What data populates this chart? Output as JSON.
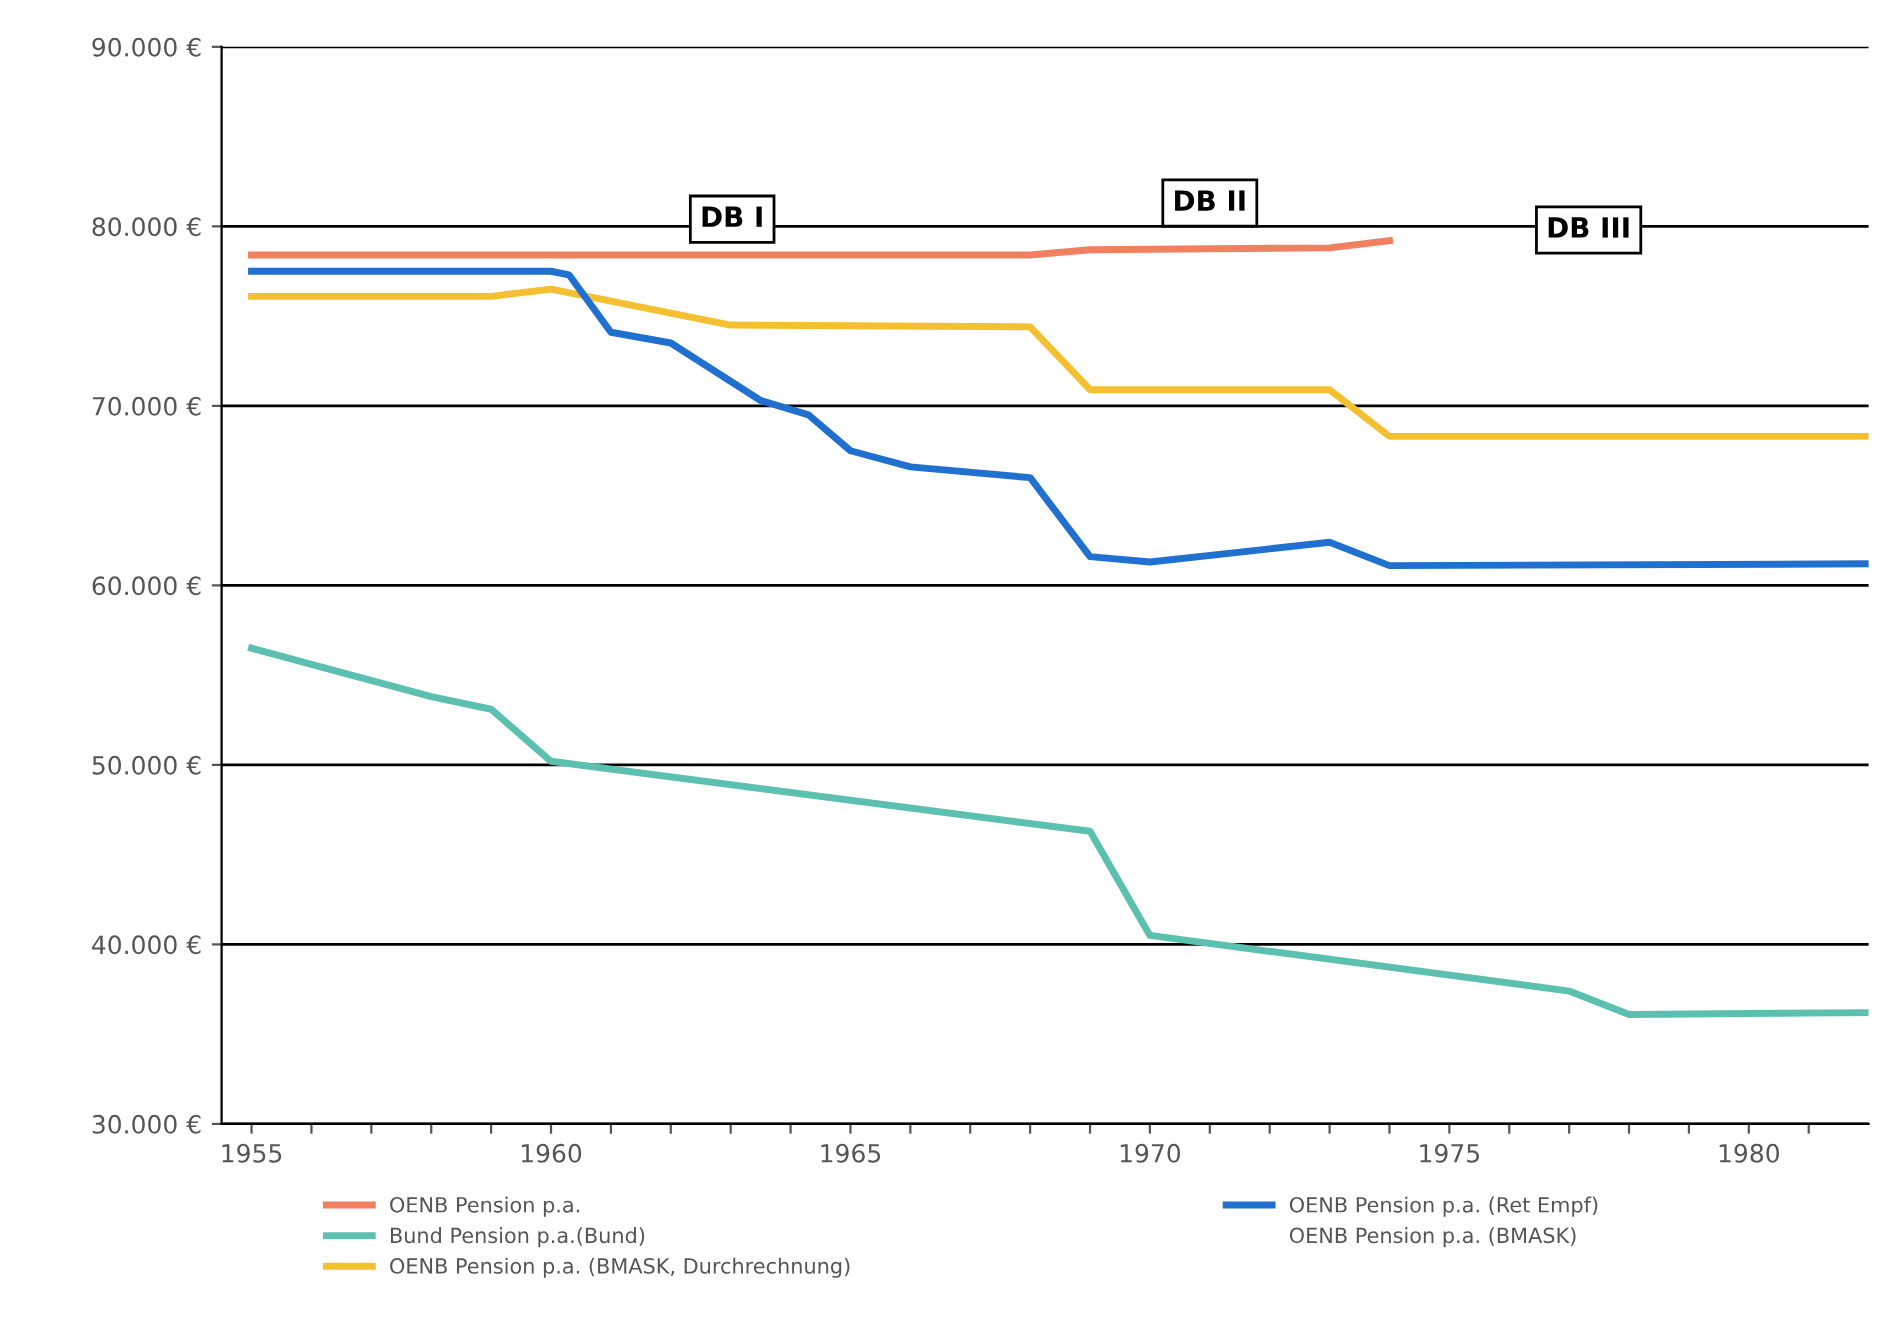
{
  "chart_data": {
    "type": "line",
    "ylim": [
      30000,
      90000
    ],
    "yticks": [
      {
        "value": 30000,
        "label": "30.000 €"
      },
      {
        "value": 40000,
        "label": "40.000 €"
      },
      {
        "value": 50000,
        "label": "50.000 €"
      },
      {
        "value": 60000,
        "label": "60.000 €"
      },
      {
        "value": 70000,
        "label": "70.000 €"
      },
      {
        "value": 80000,
        "label": "80.000 €"
      },
      {
        "value": 90000,
        "label": "90.000 €"
      }
    ],
    "xlim": [
      1954.5,
      1982
    ],
    "xticks": [
      1955,
      {
        "value": 1956,
        "label": null
      },
      {
        "value": 1957,
        "label": null
      },
      {
        "value": 1958,
        "label": null
      },
      {
        "value": 1959,
        "label": null
      },
      1960,
      {
        "value": 1961,
        "label": null
      },
      {
        "value": 1962,
        "label": null
      },
      {
        "value": 1963,
        "label": null
      },
      {
        "value": 1964,
        "label": null
      },
      1965,
      {
        "value": 1966,
        "label": null
      },
      {
        "value": 1967,
        "label": null
      },
      {
        "value": 1968,
        "label": null
      },
      {
        "value": 1969,
        "label": null
      },
      1970,
      {
        "value": 1971,
        "label": null
      },
      {
        "value": 1972,
        "label": null
      },
      {
        "value": 1973,
        "label": null
      },
      {
        "value": 1974,
        "label": null
      },
      1975,
      {
        "value": 1976,
        "label": null
      },
      {
        "value": 1977,
        "label": null
      },
      {
        "value": 1978,
        "label": null
      },
      {
        "value": 1979,
        "label": null
      },
      1980,
      {
        "value": 1981,
        "label": null
      }
    ],
    "grid": "y",
    "legend": "bottom",
    "marker": "none",
    "annotations": [
      "DB I",
      "DB II",
      "DB III"
    ],
    "series": [
      {
        "name": "OENB Pension p.a.",
        "color": "#f08060",
        "x": [
          1955,
          1968,
          1969,
          1973,
          1974
        ],
        "values": [
          78400,
          78400,
          78700,
          78800,
          79200
        ]
      },
      {
        "name": "Bund Pension p.a.(Bund)",
        "color": "#5cc0b0",
        "x": [
          1955,
          1958,
          1959,
          1960,
          1969,
          1970,
          1977,
          1978,
          1982
        ],
        "values": [
          56500,
          53800,
          53100,
          50200,
          46300,
          40500,
          37400,
          36100,
          36200
        ]
      },
      {
        "name": "OENB Pension p.a. (BMASK, Durchrechnung)",
        "color": "#f5c030",
        "x": [
          1955,
          1959,
          1960,
          1963,
          1968,
          1969,
          1973,
          1974,
          1982
        ],
        "values": [
          76100,
          76100,
          76500,
          74500,
          74400,
          70900,
          70900,
          68300,
          68300
        ]
      },
      {
        "name": "OENB Pension p.a. (Ret Empf)",
        "color": "#2070d0",
        "x": [
          1955,
          1960,
          1960.3,
          1961,
          1962,
          1963.5,
          1964.3,
          1965,
          1966,
          1968,
          1969,
          1970,
          1973,
          1974,
          1982
        ],
        "values": [
          77500,
          77500,
          77300,
          74100,
          73500,
          70300,
          69500,
          67500,
          66600,
          66000,
          61600,
          61300,
          62400,
          61100,
          61200
        ]
      },
      {
        "name": "OENB Pension p.a. (BMASK)"
      }
    ]
  }
}
